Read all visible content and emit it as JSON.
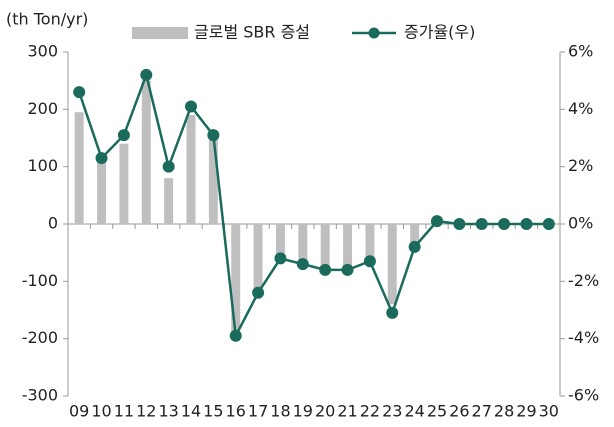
{
  "chart_data": {
    "type": "bar_line",
    "y_label": "(th Ton/yr)",
    "categories": [
      "09",
      "10",
      "11",
      "12",
      "13",
      "14",
      "15",
      "16",
      "17",
      "18",
      "19",
      "20",
      "21",
      "22",
      "23",
      "24",
      "25",
      "26",
      "27",
      "28",
      "29",
      "30"
    ],
    "series": [
      {
        "name": "글로벌 SBR 증설",
        "type": "bar",
        "color": "#bfbfbf",
        "values": [
          195,
          110,
          140,
          250,
          80,
          190,
          150,
          -190,
          -120,
          -60,
          -70,
          -80,
          -80,
          -70,
          -140,
          -40,
          5,
          2,
          2,
          2,
          2,
          2
        ]
      },
      {
        "name": "증가율(우)",
        "type": "line",
        "axis": "y2",
        "color": "#1a6b5c",
        "values": [
          4.6,
          2.3,
          3.1,
          5.2,
          2.0,
          4.1,
          3.1,
          -3.9,
          -2.4,
          -1.2,
          -1.4,
          -1.6,
          -1.6,
          -1.3,
          -3.1,
          -0.8,
          0.1,
          0,
          0,
          0,
          0,
          0
        ]
      }
    ],
    "ylim": [
      -300,
      300
    ],
    "yticks": [
      -300,
      -200,
      -100,
      0,
      100,
      200,
      300
    ],
    "y2lim": [
      -6,
      6
    ],
    "y2ticks": [
      {
        "value": -6,
        "label": "-6%"
      },
      {
        "value": -4,
        "label": "-4%"
      },
      {
        "value": -2,
        "label": "-2%"
      },
      {
        "value": 0,
        "label": "0%"
      },
      {
        "value": 2,
        "label": "2%"
      },
      {
        "value": 4,
        "label": "4%"
      },
      {
        "value": 6,
        "label": "6%"
      }
    ]
  }
}
